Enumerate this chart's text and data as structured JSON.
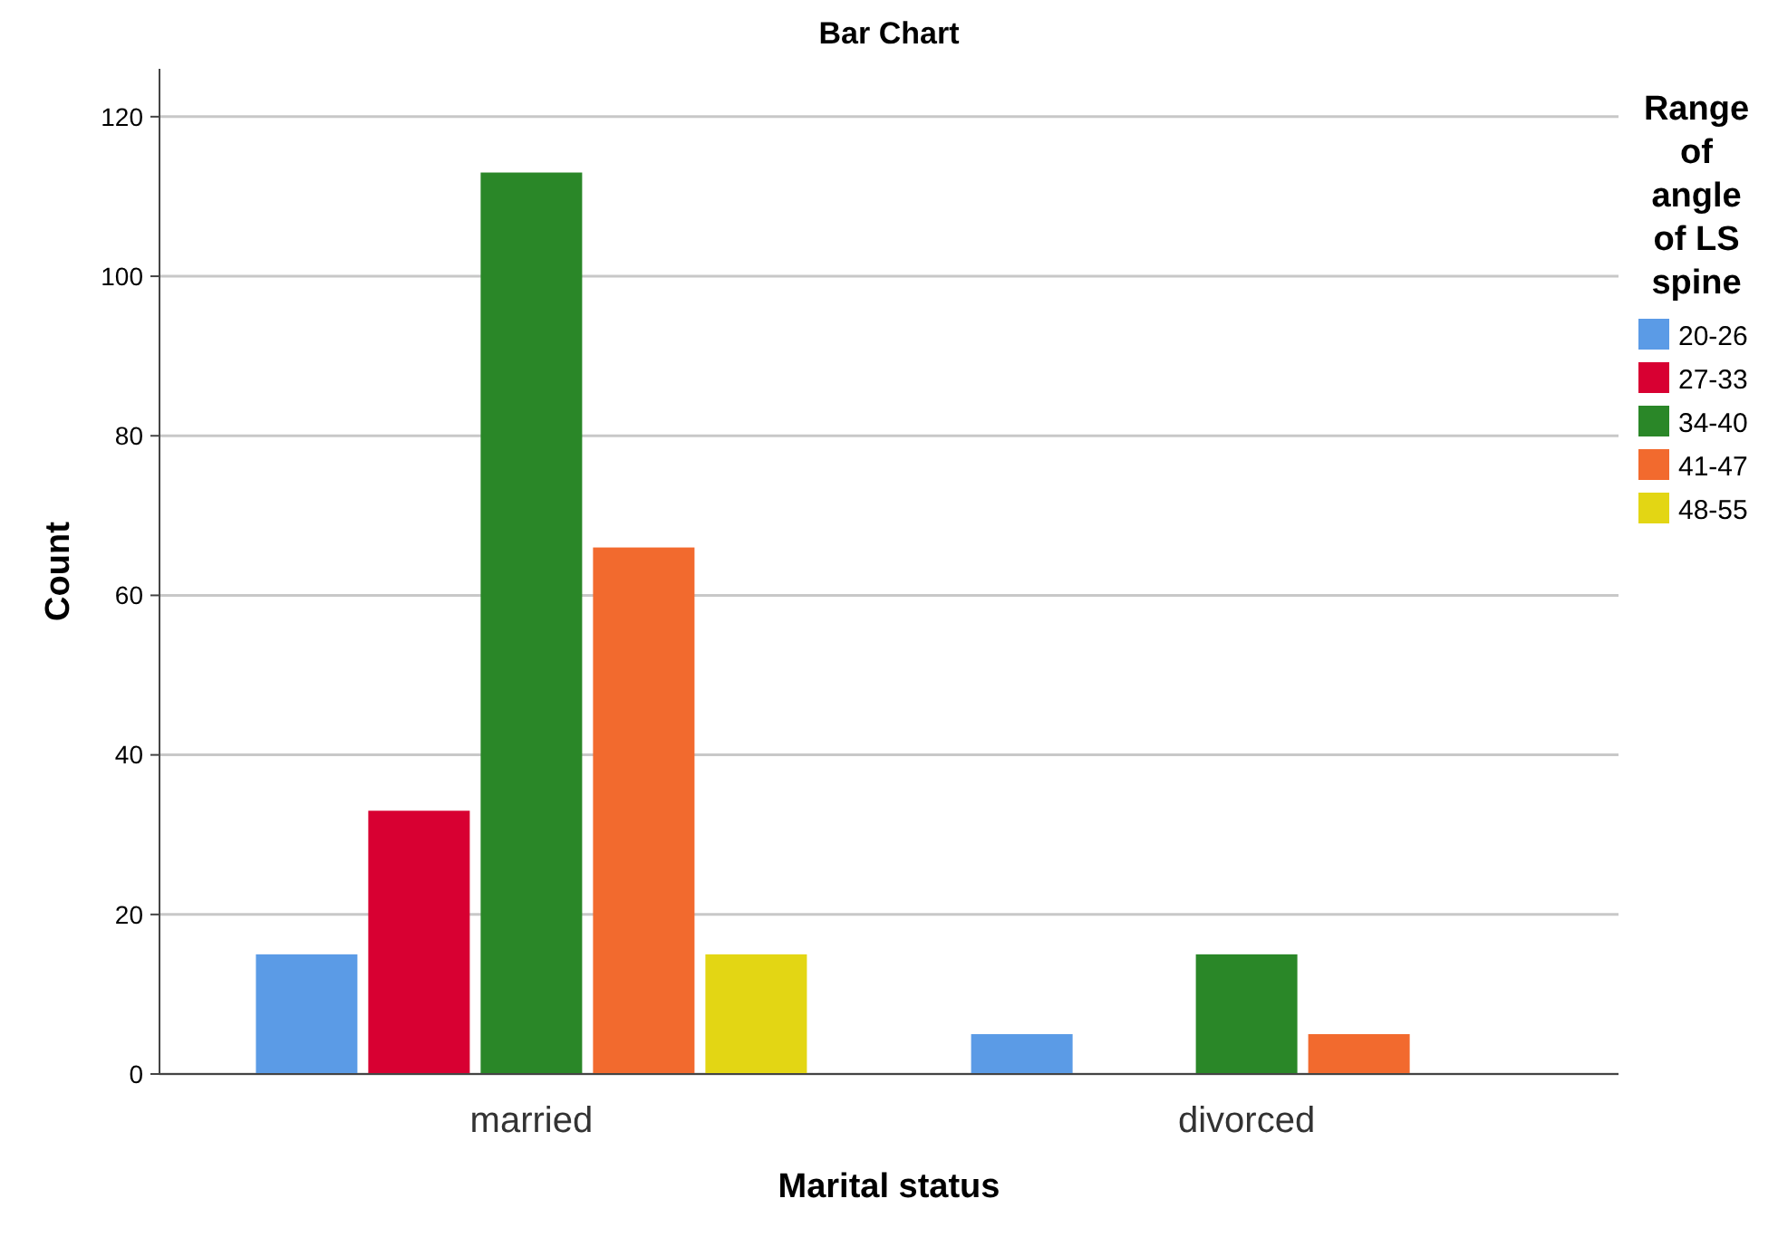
{
  "chart_data": {
    "type": "bar",
    "title": "Bar Chart",
    "xlabel": "Marital status",
    "ylabel": "Count",
    "legend_title": "Range of angle of LS spine",
    "categories": [
      "married",
      "divorced"
    ],
    "series": [
      {
        "name": "20-26",
        "color": "#5b9be6",
        "values": [
          15,
          5
        ]
      },
      {
        "name": "27-33",
        "color": "#d80032",
        "values": [
          33,
          null
        ]
      },
      {
        "name": "34-40",
        "color": "#2a8728",
        "values": [
          113,
          15
        ]
      },
      {
        "name": "41-47",
        "color": "#f26a2e",
        "values": [
          66,
          5
        ]
      },
      {
        "name": "48-55",
        "color": "#e3d614",
        "values": [
          15,
          null
        ]
      }
    ],
    "ylim": [
      0,
      126
    ],
    "yticks": [
      0,
      20,
      40,
      60,
      80,
      100,
      120
    ],
    "grid": "y",
    "legend": "right"
  }
}
